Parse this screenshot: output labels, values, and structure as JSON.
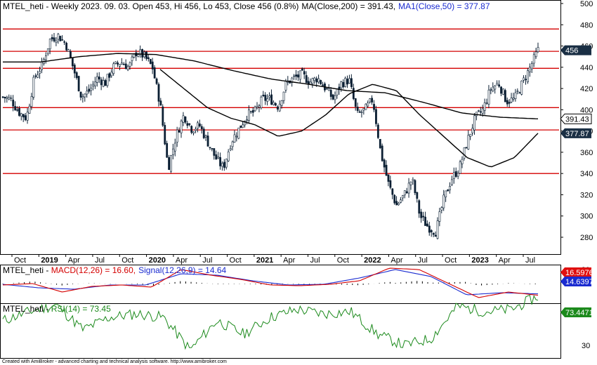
{
  "header": {
    "price": {
      "ticker": "MTEL_heti",
      "summary": " - Weekly 2023. 09. 03. Open 453, Hi 456, Lo 453, Close 456 (0.8%)",
      "ma200": "MA(Close,200) = 391.43,",
      "ma50": "MA1(Close,50) = 377.87"
    },
    "macd": {
      "ticker": "MTEL_heti",
      "macd_label": "MACD(12,26) = 16.60,",
      "signal_label": "Signal(12,26,9) = 14.64"
    },
    "rsi": {
      "ticker": "MTEL_heti",
      "rsi_label": "RSI(14) = 73.45"
    }
  },
  "footer": "Created with AmiBroker - advanced charting and technical analysis software. http://www.amibroker.com",
  "colors": {
    "candle": "#0b1f33",
    "ma": "#000000",
    "hline": "#d40000",
    "macd": "#d40000",
    "signal": "#1a2bd0",
    "rsi": "#1c8a1c",
    "last_tag": "#1a2f44",
    "macd_tag": "#e01010",
    "signal_tag": "#1a2bd0",
    "rsi_tag": "#1c8a1c"
  },
  "chart_data": [
    {
      "type": "candlestick",
      "panel": "price",
      "title": "MTEL_heti - Weekly",
      "ylim": [
        270,
        500
      ],
      "yticks": [
        280,
        300,
        320,
        340,
        360,
        380,
        400,
        420,
        440,
        460,
        480,
        500
      ],
      "x_labels": [
        "Oct",
        "2019",
        "Apr",
        "Jul",
        "Oct",
        "2020",
        "Apr",
        "Jul",
        "Oct",
        "2021",
        "Apr",
        "Jul",
        "Oct",
        "2022",
        "Apr",
        "Jul",
        "Oct",
        "2023",
        "Apr",
        "Jul"
      ],
      "bold_x_labels": [
        "2019",
        "2020",
        "2021",
        "2022",
        "2023"
      ],
      "horizontal_levels": [
        476,
        455,
        439,
        402,
        381,
        340
      ],
      "last_values": {
        "close": 456,
        "ma200": 391.43,
        "ma50": 377.87
      },
      "close_anchors": [
        {
          "x": "2018-09",
          "y": 412
        },
        {
          "x": "2018-10",
          "y": 410
        },
        {
          "x": "2018-11",
          "y": 398
        },
        {
          "x": "2018-11b",
          "y": 392
        },
        {
          "x": "2018-12",
          "y": 430
        },
        {
          "x": "2019-01a",
          "y": 442
        },
        {
          "x": "2019-01b",
          "y": 466
        },
        {
          "x": "2019-02",
          "y": 470
        },
        {
          "x": "2019-03",
          "y": 462
        },
        {
          "x": "2019-04",
          "y": 438
        },
        {
          "x": "2019-04b",
          "y": 412
        },
        {
          "x": "2019-05",
          "y": 418
        },
        {
          "x": "2019-07",
          "y": 430
        },
        {
          "x": "2019-08",
          "y": 425
        },
        {
          "x": "2019-09",
          "y": 440
        },
        {
          "x": "2019-10",
          "y": 445
        },
        {
          "x": "2019-11",
          "y": 440
        },
        {
          "x": "2019-12",
          "y": 455
        },
        {
          "x": "2020-01",
          "y": 450
        },
        {
          "x": "2020-02",
          "y": 440
        },
        {
          "x": "2020-03a",
          "y": 405
        },
        {
          "x": "2020-03b",
          "y": 345
        },
        {
          "x": "2020-04",
          "y": 375
        },
        {
          "x": "2020-05",
          "y": 395
        },
        {
          "x": "2020-06",
          "y": 382
        },
        {
          "x": "2020-07",
          "y": 385
        },
        {
          "x": "2020-08",
          "y": 370
        },
        {
          "x": "2020-09",
          "y": 355
        },
        {
          "x": "2020-10",
          "y": 345
        },
        {
          "x": "2020-11",
          "y": 370
        },
        {
          "x": "2020-12",
          "y": 382
        },
        {
          "x": "2021-01",
          "y": 395
        },
        {
          "x": "2021-02",
          "y": 398
        },
        {
          "x": "2021-03",
          "y": 410
        },
        {
          "x": "2021-04",
          "y": 410
        },
        {
          "x": "2021-05",
          "y": 403
        },
        {
          "x": "2021-06",
          "y": 425
        },
        {
          "x": "2021-07",
          "y": 430
        },
        {
          "x": "2021-08",
          "y": 433
        },
        {
          "x": "2021-09",
          "y": 426
        },
        {
          "x": "2021-10",
          "y": 430
        },
        {
          "x": "2021-11",
          "y": 420
        },
        {
          "x": "2021-12",
          "y": 410
        },
        {
          "x": "2022-01",
          "y": 425
        },
        {
          "x": "2022-02",
          "y": 428
        },
        {
          "x": "2022-03",
          "y": 395
        },
        {
          "x": "2022-04",
          "y": 400
        },
        {
          "x": "2022-04b",
          "y": 410
        },
        {
          "x": "2022-05",
          "y": 360
        },
        {
          "x": "2022-06",
          "y": 330
        },
        {
          "x": "2022-07",
          "y": 310
        },
        {
          "x": "2022-08",
          "y": 320
        },
        {
          "x": "2022-08b",
          "y": 335
        },
        {
          "x": "2022-09",
          "y": 300
        },
        {
          "x": "2022-10",
          "y": 290
        },
        {
          "x": "2022-10b",
          "y": 285
        },
        {
          "x": "2022-11",
          "y": 315
        },
        {
          "x": "2022-12",
          "y": 335
        },
        {
          "x": "2023-01",
          "y": 345
        },
        {
          "x": "2023-01b",
          "y": 370
        },
        {
          "x": "2023-02",
          "y": 392
        },
        {
          "x": "2023-03",
          "y": 400
        },
        {
          "x": "2023-04",
          "y": 420
        },
        {
          "x": "2023-05",
          "y": 425
        },
        {
          "x": "2023-05b",
          "y": 408
        },
        {
          "x": "2023-06",
          "y": 410
        },
        {
          "x": "2023-07",
          "y": 425
        },
        {
          "x": "2023-08",
          "y": 440
        },
        {
          "x": "2023-09",
          "y": 456
        }
      ],
      "ma200_anchors": [
        {
          "x": "2018-09",
          "y": 445
        },
        {
          "x": "2019-01",
          "y": 445
        },
        {
          "x": "2019-06",
          "y": 450
        },
        {
          "x": "2019-12",
          "y": 453
        },
        {
          "x": "2020-03",
          "y": 452
        },
        {
          "x": "2020-07",
          "y": 446
        },
        {
          "x": "2020-12",
          "y": 437
        },
        {
          "x": "2021-04",
          "y": 429
        },
        {
          "x": "2021-08",
          "y": 424
        },
        {
          "x": "2021-12",
          "y": 418
        },
        {
          "x": "2022-05",
          "y": 416
        },
        {
          "x": "2022-10",
          "y": 407
        },
        {
          "x": "2023-01",
          "y": 397
        },
        {
          "x": "2023-04",
          "y": 393
        },
        {
          "x": "2023-09",
          "y": 391.43
        }
      ],
      "ma50_anchors": [
        {
          "x": "2020-03",
          "y": 438
        },
        {
          "x": "2020-05",
          "y": 420
        },
        {
          "x": "2020-08",
          "y": 402
        },
        {
          "x": "2020-10",
          "y": 392
        },
        {
          "x": "2020-12",
          "y": 386
        },
        {
          "x": "2021-01",
          "y": 375
        },
        {
          "x": "2021-03",
          "y": 380
        },
        {
          "x": "2021-06",
          "y": 395
        },
        {
          "x": "2021-09",
          "y": 415
        },
        {
          "x": "2021-12",
          "y": 424
        },
        {
          "x": "2022-04",
          "y": 418
        },
        {
          "x": "2022-07",
          "y": 395
        },
        {
          "x": "2022-10",
          "y": 375
        },
        {
          "x": "2023-01",
          "y": 355
        },
        {
          "x": "2023-04",
          "y": 346
        },
        {
          "x": "2023-07",
          "y": 355
        },
        {
          "x": "2023-09",
          "y": 377.87
        }
      ]
    },
    {
      "type": "line",
      "panel": "macd",
      "title": "MACD(12,26) / Signal(12,26,9)",
      "ylim": [
        -30,
        28
      ],
      "yticks": [
        -20
      ],
      "last_values": {
        "macd": 16.5976,
        "signal": 14.6397
      },
      "macd_anchors": [
        {
          "x": "2018-09",
          "y": 2
        },
        {
          "x": "2019-01",
          "y": 0
        },
        {
          "x": "2019-03",
          "y": 12
        },
        {
          "x": "2019-06",
          "y": 4
        },
        {
          "x": "2019-10",
          "y": 2
        },
        {
          "x": "2020-01",
          "y": 5
        },
        {
          "x": "2020-04",
          "y": -20
        },
        {
          "x": "2020-07",
          "y": -12
        },
        {
          "x": "2020-12",
          "y": -6
        },
        {
          "x": "2021-05",
          "y": 2
        },
        {
          "x": "2021-09",
          "y": 3
        },
        {
          "x": "2022-01",
          "y": 1
        },
        {
          "x": "2022-04",
          "y": -4
        },
        {
          "x": "2022-07",
          "y": -22
        },
        {
          "x": "2022-10",
          "y": -20
        },
        {
          "x": "2023-01",
          "y": 0
        },
        {
          "x": "2023-04",
          "y": 20
        },
        {
          "x": "2023-06",
          "y": 12
        },
        {
          "x": "2023-09",
          "y": 16.6
        }
      ],
      "signal_anchors": [
        {
          "x": "2018-09",
          "y": 1
        },
        {
          "x": "2019-02",
          "y": 6
        },
        {
          "x": "2019-05",
          "y": 8
        },
        {
          "x": "2019-10",
          "y": 2
        },
        {
          "x": "2020-02",
          "y": 2
        },
        {
          "x": "2020-05",
          "y": -14
        },
        {
          "x": "2020-09",
          "y": -12
        },
        {
          "x": "2021-02",
          "y": -4
        },
        {
          "x": "2021-08",
          "y": 2
        },
        {
          "x": "2022-02",
          "y": 1
        },
        {
          "x": "2022-05",
          "y": -8
        },
        {
          "x": "2022-09",
          "y": -20
        },
        {
          "x": "2022-12",
          "y": -10
        },
        {
          "x": "2023-04",
          "y": 16
        },
        {
          "x": "2023-07",
          "y": 13
        },
        {
          "x": "2023-09",
          "y": 14.64
        }
      ]
    },
    {
      "type": "line",
      "panel": "rsi",
      "title": "RSI(14)",
      "ylim": [
        22,
        78
      ],
      "yticks": [
        30
      ],
      "last_value": 73.4471,
      "rsi_anchors": [
        {
          "x": "2018-09",
          "y": 52
        },
        {
          "x": "2018-12",
          "y": 60
        },
        {
          "x": "2019-02",
          "y": 66
        },
        {
          "x": "2019-04",
          "y": 44
        },
        {
          "x": "2019-08",
          "y": 55
        },
        {
          "x": "2019-12",
          "y": 58
        },
        {
          "x": "2020-02",
          "y": 55
        },
        {
          "x": "2020-04",
          "y": 26
        },
        {
          "x": "2020-06",
          "y": 52
        },
        {
          "x": "2020-10",
          "y": 40
        },
        {
          "x": "2021-01",
          "y": 55
        },
        {
          "x": "2021-06",
          "y": 62
        },
        {
          "x": "2021-10",
          "y": 58
        },
        {
          "x": "2022-02",
          "y": 60
        },
        {
          "x": "2022-04",
          "y": 40
        },
        {
          "x": "2022-07",
          "y": 30
        },
        {
          "x": "2022-10",
          "y": 36
        },
        {
          "x": "2023-02",
          "y": 65
        },
        {
          "x": "2023-05",
          "y": 60
        },
        {
          "x": "2023-07",
          "y": 62
        },
        {
          "x": "2023-09",
          "y": 73.45
        }
      ]
    }
  ]
}
